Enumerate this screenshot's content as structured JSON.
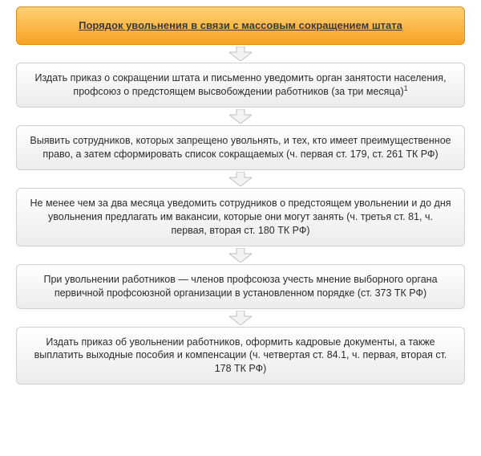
{
  "flow": {
    "background": "#ffffff",
    "arrow": {
      "fill": "#f3f3f3",
      "stroke": "#bfbfbf",
      "stroke_width": 1
    },
    "title": {
      "text": "Порядок увольнения в связи с массовым сокращением штата",
      "font_size": 13,
      "font_weight": 700,
      "underline": true,
      "text_color": "#3a3a3a",
      "bg_top": "#ffcf73",
      "bg_bottom": "#f7a325",
      "border_color": "#e08f1a",
      "border_radius": 6
    },
    "step_style": {
      "font_size": 12.5,
      "font_weight": 400,
      "text_color": "#2b2b2b",
      "bg_top": "#ffffff",
      "bg_bottom": "#ececec",
      "border_color": "#cfcfcf",
      "border_radius": 6
    },
    "steps": [
      {
        "text": "Издать приказ о сокращении штата и письменно уведомить орган занятости населения, профсоюз о предстоящем высвобождении работников (за три месяца)",
        "sup": "1"
      },
      {
        "text": "Выявить сотрудников, которых запрещено увольнять, и тех, кто имеет преимущественное право, а затем сформировать список сокращаемых (ч. первая ст. 179, ст. 261 ТК РФ)"
      },
      {
        "text": "Не менее чем за два месяца уведомить сотрудников о предстоящем увольнении и до дня увольнения предлагать им вакансии, которые они могут занять (ч. третья ст. 81, ч. первая, вторая ст. 180 ТК РФ)"
      },
      {
        "text": "При увольнении работников — членов профсоюза учесть мнение выборного органа первичной профсоюзной организации в установленном порядке (ст. 373 ТК РФ)"
      },
      {
        "text": "Издать приказ об увольнении работников, оформить кадровые документы, а также выплатить выходные пособия и компенсации (ч. четвертая ст. 84.1, ч. первая, вторая ст. 178 ТК РФ)"
      }
    ]
  }
}
